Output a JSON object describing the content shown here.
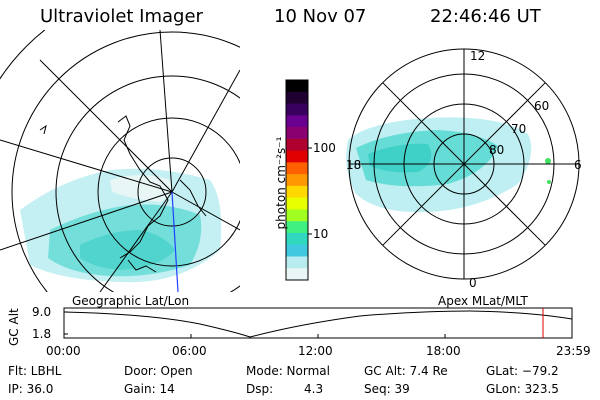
{
  "header": {
    "title": "Ultraviolet Imager",
    "date": "10 Nov 07",
    "time": "22:46:46 UT"
  },
  "colorbar": {
    "unit_label": "photon cm⁻²s⁻¹",
    "tick_labels": [
      "100",
      "10"
    ],
    "colors": [
      "#000000",
      "#200030",
      "#3a0060",
      "#6a0090",
      "#8a0070",
      "#b00030",
      "#e00000",
      "#ff6000",
      "#ff9800",
      "#ffd800",
      "#e8ff00",
      "#a0ff20",
      "#40f080",
      "#30d8c0",
      "#40c8e0",
      "#b8ecf0",
      "#e8f6f6"
    ]
  },
  "left_map": {
    "label": "Geographic Lat/Lon"
  },
  "right_map": {
    "label": "Apex  MLat/MLT",
    "hour_labels": {
      "top": "12",
      "bottom": "0",
      "left": "18",
      "right": "6"
    },
    "lat_labels": [
      "60",
      "70",
      "80"
    ]
  },
  "timeline": {
    "ylabel": "GC Alt",
    "yticks": [
      "9.0",
      "1.8"
    ],
    "xticks": [
      "00:00",
      "06:00",
      "12:00",
      "18:00",
      "23:59"
    ]
  },
  "info": {
    "row1": {
      "filter": "Flt: LBHL",
      "door": "Door: Open",
      "mode": "Mode: Normal",
      "gc_alt": "GC Alt: 7.4 Re",
      "glat": "GLat: −79.2"
    },
    "row2": {
      "ip": "IP: 36.0",
      "gain": "Gain: 14",
      "dsp_label": "Dsp:",
      "dsp_value": "4.3",
      "seq": "Seq: 39",
      "glon": "GLon: 323.5"
    }
  }
}
